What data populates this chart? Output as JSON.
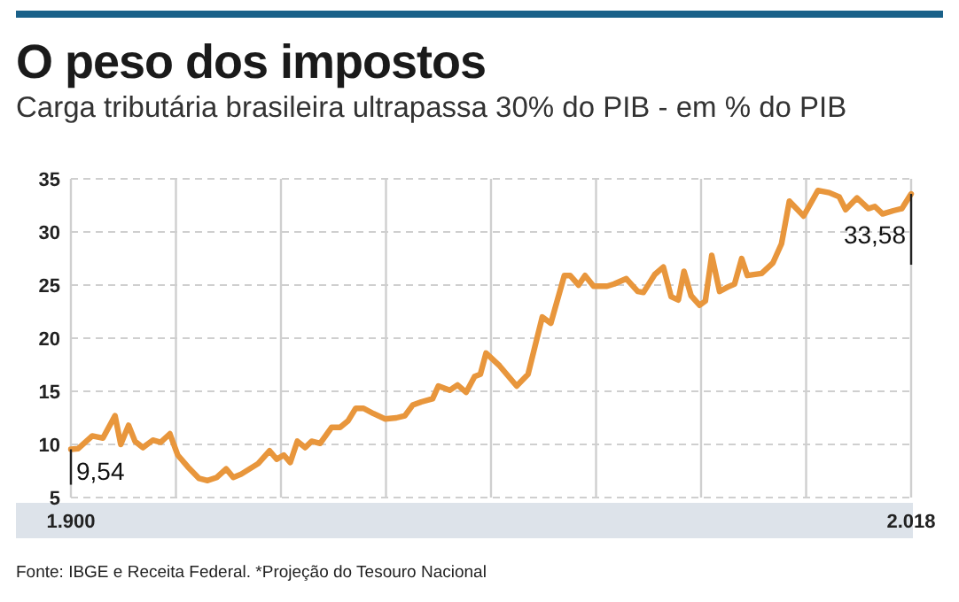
{
  "chart_data": {
    "type": "line",
    "title": "O peso dos impostos",
    "subtitle": "Carga tributária brasileira ultrapassa 30% do PIB - em % do PIB",
    "x": [
      1900,
      1901,
      1903,
      1904.5,
      1906.2,
      1907,
      1908.1,
      1909,
      1910.1,
      1911.5,
      1912.6,
      1913.9,
      1915,
      1916.4,
      1918,
      1919.2,
      1920.5,
      1921.8,
      1922.8,
      1923.9,
      1925.1,
      1926.3,
      1927.9,
      1928.9,
      1929.9,
      1930.8,
      1931.8,
      1932.9,
      1933.8,
      1935,
      1936.6,
      1937.8,
      1938.9,
      1940,
      1941.1,
      1942.5,
      1944.1,
      1945.7,
      1946.9,
      1948,
      1949.2,
      1950.8,
      1951.6,
      1953.2,
      1954.3,
      1955.5,
      1956.7,
      1957.5,
      1958.3,
      1960.2,
      1962.6,
      1964.2,
      1966.2,
      1967.4,
      1969.3,
      1970.1,
      1971.3,
      1972.2,
      1973.4,
      1975.3,
      1976.3,
      1978,
      1979.6,
      1980.4,
      1982,
      1983.2,
      1984.3,
      1985.3,
      1986.1,
      1987.1,
      1988.3,
      1989.1,
      1990,
      1991.1,
      1992.2,
      1993.2,
      1994.2,
      1995,
      1997,
      1998.6,
      1999.8,
      2000.9,
      2002.9,
      2004.9,
      2006.5,
      2007.9,
      2008.8,
      2010.4,
      2012,
      2012.9,
      2014,
      2015.5,
      2016.7,
      2018
    ],
    "series": [
      {
        "color": "#e8963c",
        "values": [
          9.54,
          9.6,
          10.8,
          10.6,
          12.7,
          10,
          11.8,
          10.3,
          9.7,
          10.4,
          10.2,
          11,
          9,
          7.9,
          6.8,
          6.6,
          6.9,
          7.7,
          6.9,
          7.2,
          7.7,
          8.2,
          9.4,
          8.6,
          9,
          8.3,
          10.3,
          9.7,
          10.3,
          10.1,
          11.6,
          11.6,
          12.2,
          13.4,
          13.4,
          12.9,
          12.4,
          12.5,
          12.7,
          13.7,
          14,
          14.3,
          15.5,
          15.1,
          15.6,
          14.9,
          16.4,
          16.6,
          18.6,
          17.4,
          15.5,
          16.6,
          22,
          21.4,
          25.9,
          25.9,
          25,
          25.9,
          24.9,
          24.9,
          25.1,
          25.6,
          24.4,
          24.3,
          26,
          26.7,
          23.9,
          23.6,
          26.3,
          24,
          23.1,
          23.5,
          27.8,
          24.4,
          24.8,
          25.1,
          27.5,
          25.9,
          26.1,
          27.1,
          28.9,
          32.9,
          31.5,
          33.9,
          33.7,
          33.3,
          32.1,
          33.2,
          32.2,
          32.4,
          31.7,
          32,
          32.2,
          33.58
        ]
      }
    ],
    "xlim": [
      1900,
      2018
    ],
    "xticks": [
      {
        "value": 1900,
        "label": "1.900"
      },
      {
        "value": 1914.75,
        "label": null
      },
      {
        "value": 1929.5,
        "label": null
      },
      {
        "value": 1944.25,
        "label": null
      },
      {
        "value": 1959,
        "label": null
      },
      {
        "value": 1973.75,
        "label": null
      },
      {
        "value": 1988.5,
        "label": null
      },
      {
        "value": 2003.25,
        "label": null
      },
      {
        "value": 2018,
        "label": "2.018"
      }
    ],
    "ylim": [
      5,
      35
    ],
    "yticks": [
      5,
      10,
      15,
      20,
      25,
      30,
      35
    ],
    "grid": true,
    "marker": "none",
    "line_style": "solid",
    "annotations": [
      {
        "text": "9,54",
        "x": 1900,
        "y": 9.54
      },
      {
        "text": "33,58",
        "x": 2018,
        "y": 33.58
      },
      "Fonte: IBGE e Receita Federal. *Projeção do Tesouro Nacional"
    ]
  }
}
